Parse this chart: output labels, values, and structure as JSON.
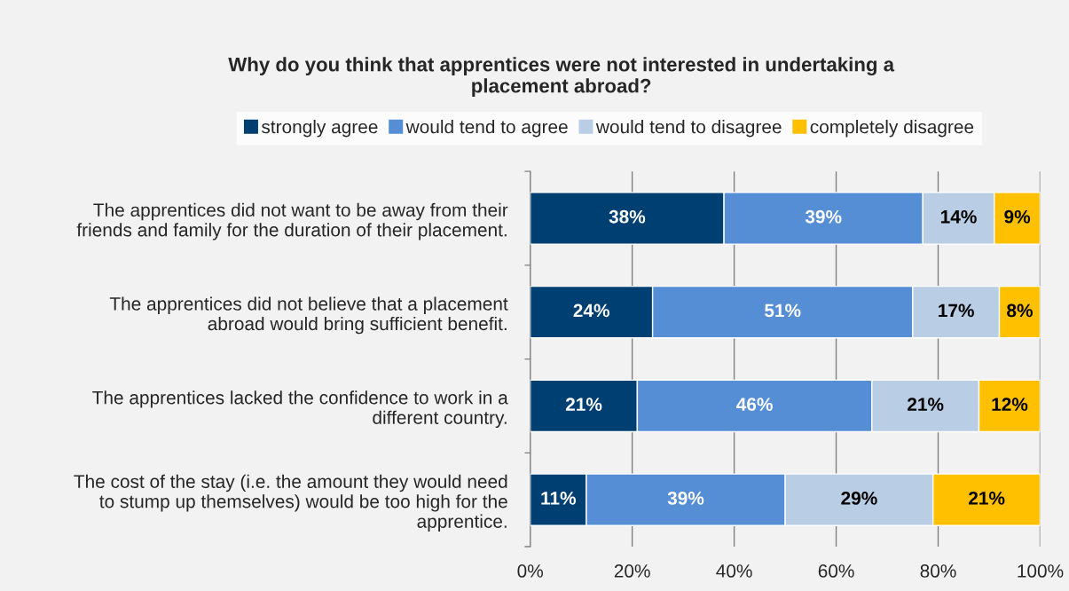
{
  "chart_data": {
    "type": "bar",
    "orientation": "horizontal",
    "stacked": true,
    "title": "Why do you think that apprentices were not interested in undertaking a\nplacement abroad?",
    "categories": [
      "The apprentices did not want to be away from their\nfriends and family for the duration of their placement.",
      "The apprentices did not believe that a placement\nabroad would bring sufficient benefit.",
      "The apprentices lacked the confidence to work in a\ndifferent country.",
      "The cost of the stay (i.e. the amount they would need\nto stump up themselves) would be too high for the\napprentice."
    ],
    "series": [
      {
        "name": "strongly agree",
        "color": "#003f72",
        "values": [
          38,
          24,
          21,
          11
        ],
        "value_labels": [
          "38%",
          "24%",
          "21%",
          "11%"
        ]
      },
      {
        "name": "would tend to agree",
        "color": "#558ed5",
        "values": [
          39,
          51,
          46,
          39
        ],
        "value_labels": [
          "39%",
          "51%",
          "46%",
          "39%"
        ]
      },
      {
        "name": "would tend to disagree",
        "color": "#b9cde5",
        "values": [
          14,
          17,
          21,
          29
        ],
        "value_labels": [
          "14%",
          "17%",
          "21%",
          "29%"
        ]
      },
      {
        "name": "completely disagree",
        "color": "#ffc000",
        "values": [
          9,
          8,
          12,
          21
        ],
        "value_labels": [
          "9%",
          "8%",
          "12%",
          "21%"
        ]
      }
    ],
    "xlim": [
      0,
      100
    ],
    "xticks": [
      {
        "value": 0,
        "label": "0%"
      },
      {
        "value": 20,
        "label": "20%"
      },
      {
        "value": 40,
        "label": "40%"
      },
      {
        "value": 60,
        "label": "60%"
      },
      {
        "value": 80,
        "label": "80%"
      },
      {
        "value": 100,
        "label": "100%"
      }
    ],
    "grid": "x",
    "legend": "top"
  }
}
